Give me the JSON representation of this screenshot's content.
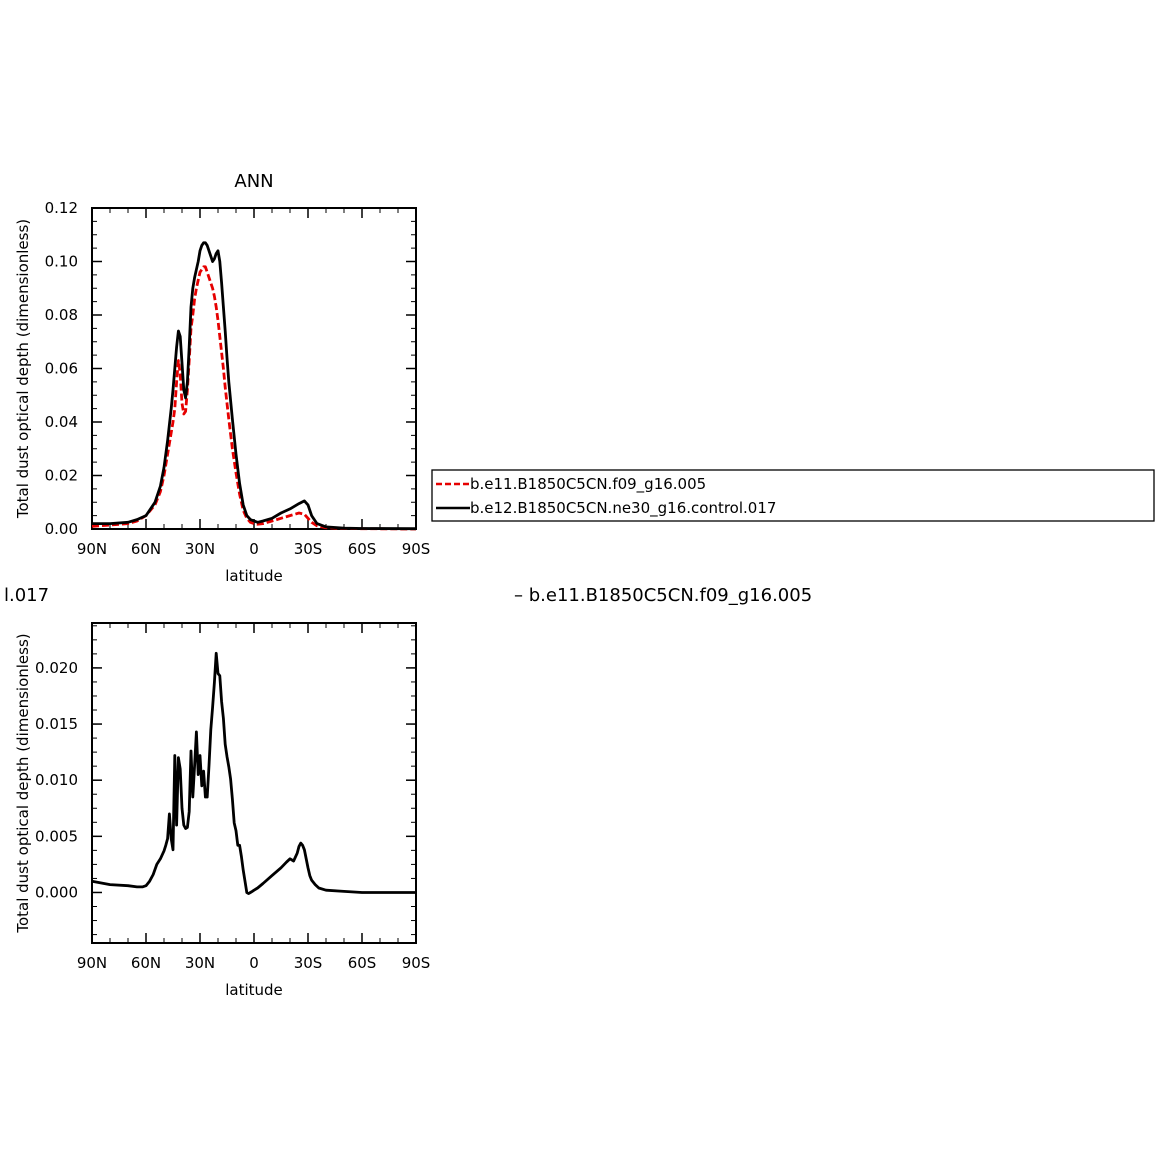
{
  "page_text": {
    "diff_title_left": "l.017",
    "diff_title_right": "– b.e11.B1850C5CN.f09_g16.005"
  },
  "legend": {
    "entries": [
      {
        "label": "b.e11.B1850C5CN.f09_g16.005",
        "color": "#e60000",
        "dash": "dashed"
      },
      {
        "label": "b.e12.B1850C5CN.ne30_g16.control.017",
        "color": "#000000",
        "dash": "solid"
      }
    ]
  },
  "chart_data": [
    {
      "type": "line",
      "title": "ANN",
      "xlabel": "latitude",
      "ylabel": "Total dust optical depth (dimensionless)",
      "xlim": [
        90,
        -90
      ],
      "ylim": [
        0,
        0.12
      ],
      "x_ticks": [
        90,
        60,
        30,
        0,
        -30,
        -60,
        -90
      ],
      "x_tick_labels": [
        "90N",
        "60N",
        "30N",
        "0",
        "30S",
        "60S",
        "90S"
      ],
      "y_ticks": [
        0,
        0.02,
        0.04,
        0.06,
        0.08,
        0.1,
        0.12
      ],
      "y_tick_labels": [
        "0.00",
        "0.02",
        "0.04",
        "0.06",
        "0.08",
        "0.10",
        "0.12"
      ],
      "series": [
        {
          "name": "b.e11.B1850C5CN.f09_g16.005",
          "color": "#e60000",
          "dash": "dashed",
          "x": [
            90,
            80,
            70,
            65,
            60,
            55,
            52,
            50,
            48,
            46,
            45,
            44,
            43,
            42,
            41,
            40,
            39,
            38,
            37,
            36,
            35,
            34,
            33,
            32,
            31,
            30,
            29,
            28,
            27,
            26,
            25,
            24,
            23,
            22,
            21,
            20,
            19,
            18,
            17,
            16,
            15,
            14,
            12,
            10,
            8,
            6,
            4,
            2,
            0,
            -2,
            -5,
            -10,
            -15,
            -20,
            -25,
            -28,
            -30,
            -32,
            -35,
            -40,
            -50,
            -60,
            -90
          ],
          "y": [
            0.001,
            0.0015,
            0.002,
            0.003,
            0.005,
            0.009,
            0.014,
            0.02,
            0.028,
            0.036,
            0.04,
            0.045,
            0.055,
            0.063,
            0.058,
            0.047,
            0.043,
            0.044,
            0.052,
            0.063,
            0.075,
            0.08,
            0.086,
            0.09,
            0.093,
            0.096,
            0.097,
            0.098,
            0.098,
            0.096,
            0.094,
            0.092,
            0.09,
            0.087,
            0.083,
            0.078,
            0.072,
            0.066,
            0.06,
            0.053,
            0.047,
            0.041,
            0.03,
            0.021,
            0.013,
            0.007,
            0.004,
            0.0025,
            0.002,
            0.0018,
            0.002,
            0.003,
            0.004,
            0.005,
            0.006,
            0.0055,
            0.004,
            0.0025,
            0.0012,
            0.0005,
            0.0002,
            0.0001,
            0.0
          ]
        },
        {
          "name": "b.e12.B1850C5CN.ne30_g16.control.017",
          "color": "#000000",
          "dash": "solid",
          "x": [
            90,
            80,
            70,
            65,
            60,
            55,
            52,
            50,
            48,
            46,
            45,
            44,
            43,
            42,
            41,
            40,
            39,
            38,
            37,
            36,
            35,
            34,
            33,
            32,
            31,
            30,
            29,
            28,
            27,
            26,
            25,
            24,
            23,
            22,
            21,
            20,
            19,
            18,
            17,
            16,
            15,
            14,
            12,
            10,
            8,
            6,
            4,
            2,
            0,
            -2,
            -5,
            -10,
            -15,
            -20,
            -25,
            -28,
            -30,
            -32,
            -35,
            -40,
            -50,
            -60,
            -90
          ],
          "y": [
            0.002,
            0.002,
            0.0025,
            0.0035,
            0.005,
            0.01,
            0.016,
            0.023,
            0.033,
            0.045,
            0.052,
            0.06,
            0.068,
            0.074,
            0.072,
            0.062,
            0.052,
            0.049,
            0.055,
            0.068,
            0.083,
            0.09,
            0.094,
            0.097,
            0.1,
            0.104,
            0.106,
            0.107,
            0.107,
            0.106,
            0.104,
            0.102,
            0.1,
            0.101,
            0.103,
            0.104,
            0.1,
            0.092,
            0.083,
            0.074,
            0.064,
            0.055,
            0.041,
            0.028,
            0.017,
            0.009,
            0.005,
            0.0035,
            0.003,
            0.0025,
            0.003,
            0.004,
            0.006,
            0.0075,
            0.0095,
            0.0105,
            0.009,
            0.005,
            0.002,
            0.0008,
            0.0003,
            0.0002,
            0.0001
          ]
        }
      ]
    },
    {
      "type": "line",
      "title": "",
      "xlabel": "latitude",
      "ylabel": "Total dust optical depth (dimensionless)",
      "xlim": [
        90,
        -90
      ],
      "ylim": [
        -0.0045,
        0.024
      ],
      "x_ticks": [
        90,
        60,
        30,
        0,
        -30,
        -60,
        -90
      ],
      "x_tick_labels": [
        "90N",
        "60N",
        "30N",
        "0",
        "30S",
        "60S",
        "90S"
      ],
      "y_ticks": [
        0,
        0.005,
        0.01,
        0.015,
        0.02
      ],
      "y_tick_labels": [
        "0.000",
        "0.005",
        "0.010",
        "0.015",
        "0.020"
      ],
      "series": [
        {
          "color": "#000000",
          "dash": "solid",
          "x": [
            90,
            80,
            70,
            65,
            62,
            60,
            58,
            56,
            54,
            52,
            50,
            49,
            48,
            47,
            46,
            45,
            44,
            43,
            42,
            41,
            40,
            39,
            38,
            37,
            36,
            35,
            34,
            33,
            32,
            31,
            30,
            29,
            28,
            27,
            26,
            25,
            24,
            23,
            22,
            21,
            20,
            19,
            18,
            17,
            16,
            15,
            14,
            13,
            12,
            11,
            10,
            9,
            8,
            7,
            6,
            5,
            4,
            3,
            2,
            1,
            0,
            -2,
            -5,
            -10,
            -15,
            -18,
            -20,
            -22,
            -24,
            -25,
            -26,
            -27,
            -28,
            -29,
            -30,
            -31,
            -32,
            -34,
            -36,
            -40,
            -50,
            -60,
            -70,
            -90
          ],
          "y": [
            0.001,
            0.0007,
            0.0006,
            0.0005,
            0.0005,
            0.0006,
            0.001,
            0.0016,
            0.0025,
            0.003,
            0.0037,
            0.0042,
            0.0048,
            0.007,
            0.0048,
            0.0038,
            0.0122,
            0.006,
            0.012,
            0.011,
            0.0075,
            0.006,
            0.0057,
            0.0058,
            0.0072,
            0.0126,
            0.0085,
            0.0113,
            0.0143,
            0.0105,
            0.0122,
            0.0095,
            0.0108,
            0.0085,
            0.0085,
            0.0113,
            0.0145,
            0.0165,
            0.0187,
            0.0213,
            0.0195,
            0.0193,
            0.017,
            0.0155,
            0.0132,
            0.0121,
            0.0112,
            0.0101,
            0.0083,
            0.0062,
            0.0055,
            0.0042,
            0.0042,
            0.0032,
            0.002,
            0.001,
            0.0,
            -0.0001,
            0.0,
            0.0001,
            0.0002,
            0.0004,
            0.0008,
            0.0015,
            0.0022,
            0.0027,
            0.003,
            0.0028,
            0.0035,
            0.0041,
            0.0044,
            0.0042,
            0.0038,
            0.003,
            0.0022,
            0.0015,
            0.0011,
            0.0007,
            0.0004,
            0.0002,
            0.0001,
            0.0,
            0.0,
            0.0
          ]
        }
      ]
    }
  ]
}
